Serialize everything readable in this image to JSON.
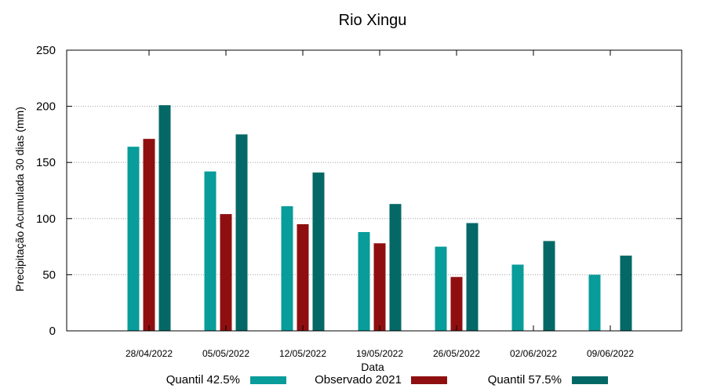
{
  "chart_data": {
    "type": "bar",
    "title": "Rio Xingu",
    "xlabel": "Data",
    "ylabel": "Precipitação Acumulada 30 dias (mm)",
    "categories": [
      "28/04/2022",
      "05/05/2022",
      "12/05/2022",
      "19/05/2022",
      "26/05/2022",
      "02/06/2022",
      "09/06/2022"
    ],
    "ylim": [
      0,
      250
    ],
    "yticks": [
      0,
      50,
      100,
      150,
      200,
      250
    ],
    "grid": true,
    "legend_position": "bottom",
    "series": [
      {
        "name": "Quantil 42.5%",
        "color": "#089c9a",
        "values": [
          164,
          142,
          111,
          88,
          75,
          59,
          50
        ]
      },
      {
        "name": "Observado 2021",
        "color": "#8f0f10",
        "values": [
          171,
          104,
          95,
          78,
          48,
          null,
          null
        ]
      },
      {
        "name": "Quantil 57.5%",
        "color": "#046866",
        "values": [
          201,
          175,
          141,
          113,
          96,
          80,
          67
        ]
      }
    ]
  }
}
